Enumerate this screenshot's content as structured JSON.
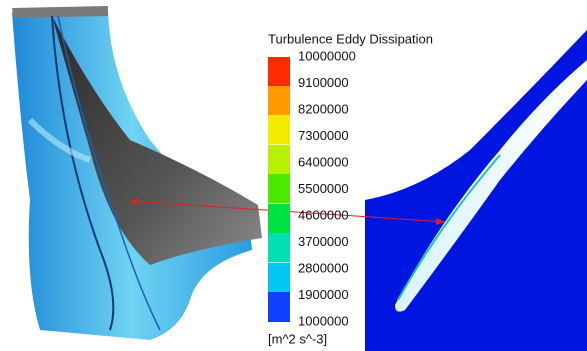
{
  "legend": {
    "title": "Turbulence Eddy Dissipation",
    "ticks": [
      10000000,
      9100000,
      8200000,
      7300000,
      6400000,
      5500000,
      4600000,
      3700000,
      2800000,
      1900000,
      1000000
    ],
    "unit": "[m^2 s^-3]"
  }
}
